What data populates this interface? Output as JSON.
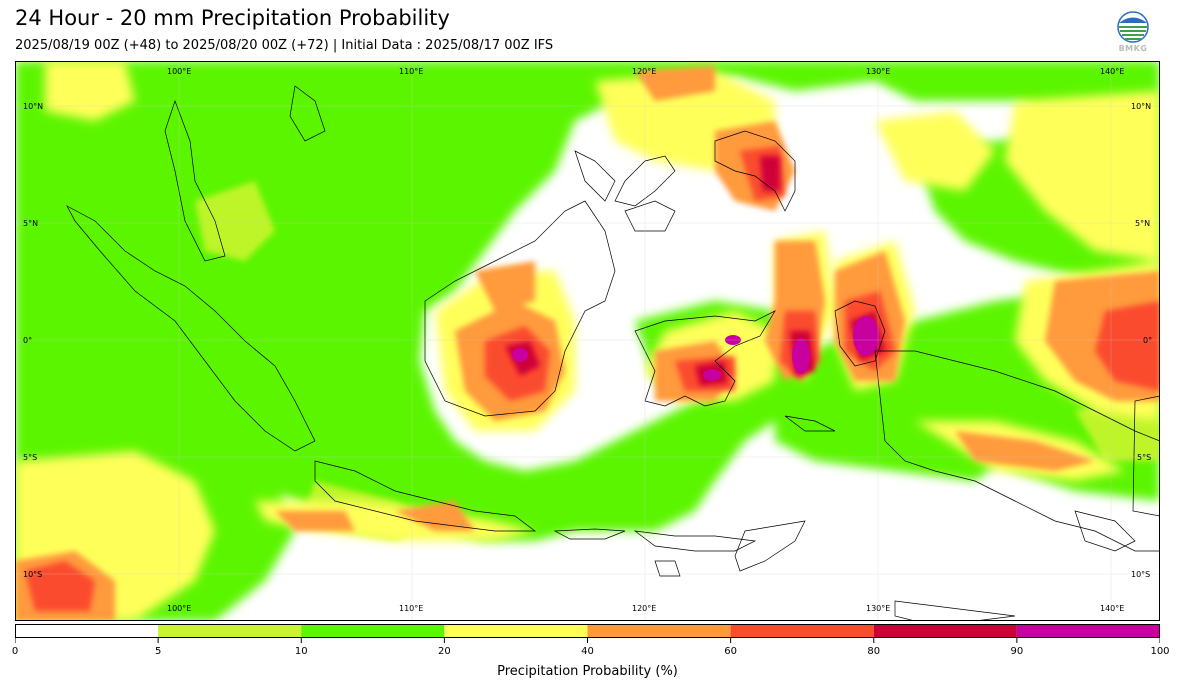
{
  "header": {
    "title": "24 Hour - 20 mm Precipitation Probability",
    "subtitle": "2025/08/19 00Z (+48) to 2025/08/20 00Z (+72) | Initial Data : 2025/08/17 00Z IFS",
    "logo_text": "BMKG"
  },
  "map": {
    "lon_labels": [
      "100°E",
      "110°E",
      "120°E",
      "130°E",
      "140°E"
    ],
    "lat_labels": [
      "10°N",
      "5°N",
      "0°",
      "5°S",
      "10°S"
    ],
    "colors": {
      "p5_10": "#c8f52d",
      "p10_20": "#5cf500",
      "p20_40": "#ffff5a",
      "p40_60": "#ff9a3c",
      "p60_80": "#fb4c2e",
      "p80_90": "#cf0037",
      "p90_100": "#c800a0",
      "coastline": "#000000"
    }
  },
  "colorbar": {
    "ticks": [
      "0",
      "5",
      "10",
      "20",
      "40",
      "60",
      "80",
      "90",
      "100"
    ],
    "label": "Precipitation Probability (%)",
    "bins": [
      {
        "from": 0,
        "to": 5,
        "color": "#ffffff"
      },
      {
        "from": 5,
        "to": 10,
        "color": "#c8f52d"
      },
      {
        "from": 10,
        "to": 20,
        "color": "#5cf500"
      },
      {
        "from": 20,
        "to": 40,
        "color": "#ffff5a"
      },
      {
        "from": 40,
        "to": 60,
        "color": "#ff9a3c"
      },
      {
        "from": 60,
        "to": 80,
        "color": "#fb4c2e"
      },
      {
        "from": 80,
        "to": 90,
        "color": "#cf0037"
      },
      {
        "from": 90,
        "to": 100,
        "color": "#c800a0"
      }
    ]
  }
}
